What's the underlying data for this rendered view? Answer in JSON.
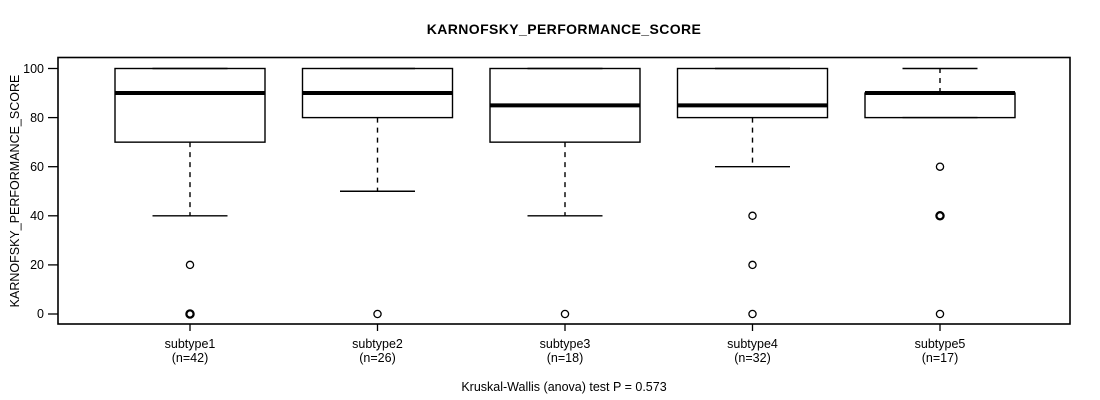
{
  "chart_data": {
    "type": "boxplot",
    "title": "KARNOFSKY_PERFORMANCE_SCORE",
    "ylabel": "KARNOFSKY_PERFORMANCE_SCORE",
    "xlabel": "",
    "annotation": "Kruskal-Wallis (anova) test P = 0.573",
    "p_value": 0.573,
    "ylim": [
      0,
      100
    ],
    "yticks": [
      0,
      20,
      40,
      60,
      80,
      100
    ],
    "grid": false,
    "legend": "none",
    "line_color": "#000000",
    "box_fill": "#ffffff",
    "groups": [
      {
        "label": "subtype1",
        "n_label": "(n=42)",
        "n": 42,
        "whisker_low": 40,
        "q1": 70,
        "median": 90,
        "q3": 100,
        "whisker_high": 100,
        "outliers": [
          20,
          0,
          0
        ]
      },
      {
        "label": "subtype2",
        "n_label": "(n=26)",
        "n": 26,
        "whisker_low": 50,
        "q1": 80,
        "median": 90,
        "q3": 100,
        "whisker_high": 100,
        "outliers": [
          0
        ]
      },
      {
        "label": "subtype3",
        "n_label": "(n=18)",
        "n": 18,
        "whisker_low": 40,
        "q1": 70,
        "median": 85,
        "q3": 100,
        "whisker_high": 100,
        "outliers": [
          0
        ]
      },
      {
        "label": "subtype4",
        "n_label": "(n=32)",
        "n": 32,
        "whisker_low": 60,
        "q1": 80,
        "median": 85,
        "q3": 100,
        "whisker_high": 100,
        "outliers": [
          40,
          20,
          0
        ]
      },
      {
        "label": "subtype5",
        "n_label": "(n=17)",
        "n": 17,
        "whisker_low": 80,
        "q1": 80,
        "median": 90,
        "q3": 90,
        "whisker_high": 100,
        "outliers": [
          60,
          40,
          40,
          0
        ]
      }
    ]
  }
}
